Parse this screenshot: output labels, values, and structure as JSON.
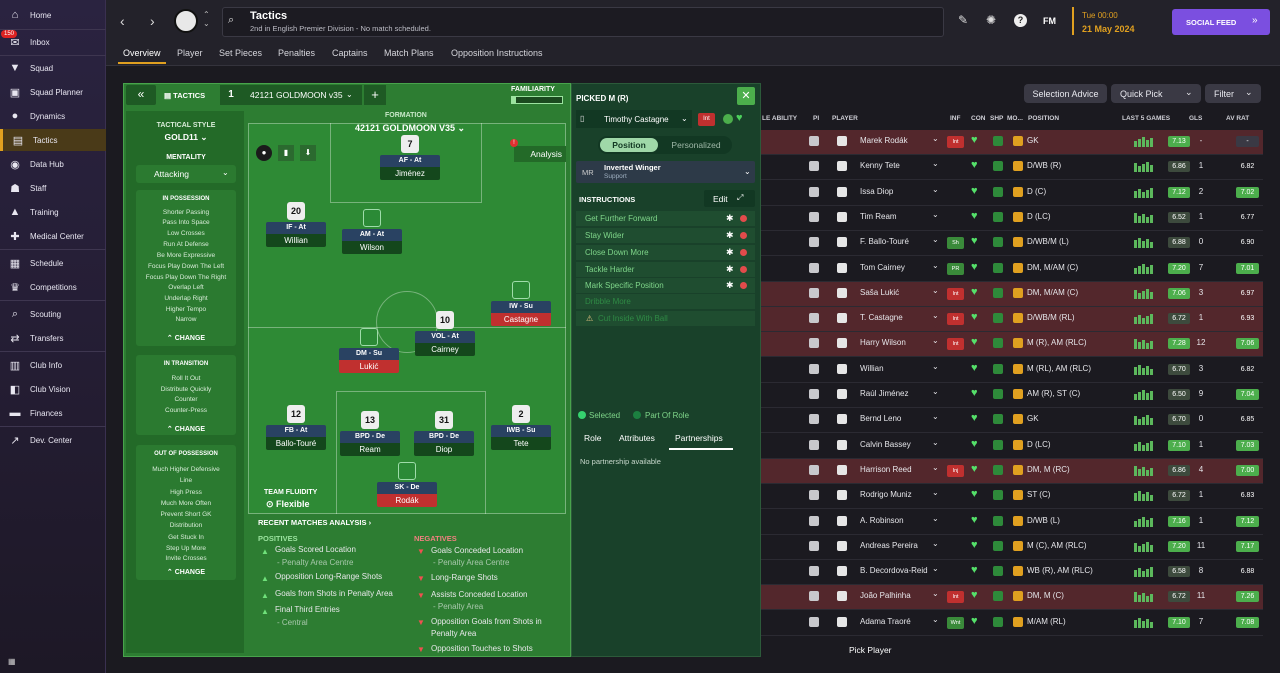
{
  "sidebar": {
    "items": [
      {
        "label": "Home",
        "icon": "home-icon"
      },
      {
        "label": "Inbox",
        "icon": "inbox-icon",
        "badge": "150"
      },
      {
        "label": "Squad",
        "icon": "shirt-icon"
      },
      {
        "label": "Squad Planner",
        "icon": "squad-planner-icon"
      },
      {
        "label": "Dynamics",
        "icon": "dynamics-icon"
      },
      {
        "label": "Tactics",
        "icon": "tactics-icon"
      },
      {
        "label": "Data Hub",
        "icon": "data-hub-icon"
      },
      {
        "label": "Staff",
        "icon": "staff-icon"
      },
      {
        "label": "Training",
        "icon": "training-icon"
      },
      {
        "label": "Medical Center",
        "icon": "medical-icon"
      },
      {
        "label": "Schedule",
        "icon": "calendar-icon"
      },
      {
        "label": "Competitions",
        "icon": "trophy-icon"
      },
      {
        "label": "Scouting",
        "icon": "scouting-icon"
      },
      {
        "label": "Transfers",
        "icon": "transfers-icon"
      },
      {
        "label": "Club Info",
        "icon": "club-info-icon"
      },
      {
        "label": "Club Vision",
        "icon": "club-vision-icon"
      },
      {
        "label": "Finances",
        "icon": "finances-icon"
      },
      {
        "label": "Dev. Center",
        "icon": "dev-center-icon"
      }
    ]
  },
  "topbar": {
    "title": "Tactics",
    "subtitle": "2nd in English Premier Division - No match scheduled.",
    "fm_label": "FM",
    "date_time": "Tue 00:00",
    "date": "21 May 2024",
    "social_feed": "SOCIAL FEED"
  },
  "tabs": [
    "Overview",
    "Player",
    "Set Pieces",
    "Penalties",
    "Captains",
    "Match Plans",
    "Opposition Instructions"
  ],
  "tactics": {
    "header": "TACTICS",
    "slot": "1",
    "formation_select": "42121 GOLDMOON v35",
    "familiarity_label": "FAMILIARITY",
    "formation_label": "FORMATION",
    "formation_name": "42121 GOLDMOON V35",
    "analysis": "Analysis",
    "tactical_style_label": "TACTICAL STYLE",
    "tactical_style": "GOLD11",
    "mentality_label": "MENTALITY",
    "mentality": "Attacking",
    "in_possession_label": "IN POSSESSION",
    "in_possession": [
      "Shorter Passing",
      "Pass Into Space",
      "Low Crosses",
      "Run At Defense",
      "Be More Expressive",
      "Focus Play Down The Left",
      "Focus Play Down The Right",
      "Overlap Left",
      "Underlap Right",
      "Higher Tempo",
      "Narrow"
    ],
    "in_transition_label": "IN TRANSITION",
    "in_transition": [
      "Roll It Out",
      "Distribute Quickly",
      "Counter",
      "Counter-Press"
    ],
    "out_of_possession_label": "OUT OF POSSESSION",
    "out_of_possession": [
      "Much Higher Defensive Line",
      "High Press",
      "Much More Often",
      "Prevent Short GK Distribution",
      "Get Stuck In",
      "Step Up More",
      "Invite Crosses"
    ],
    "change": "CHANGE",
    "team_fluidity_label": "TEAM FLUIDITY",
    "team_fluidity": "Flexible",
    "recent_matches": "RECENT MATCHES ANALYSIS",
    "positives_label": "POSITIVES",
    "positives": [
      {
        "text": "Goals Scored Location",
        "sub": "- Penalty Area Centre"
      },
      {
        "text": "Opposition Long-Range Shots",
        "sub": ""
      },
      {
        "text": "Goals from Shots in Penalty Area",
        "sub": ""
      },
      {
        "text": "Final Third Entries",
        "sub": "- Central"
      }
    ],
    "negatives_label": "NEGATIVES",
    "negatives": [
      {
        "text": "Goals Conceded Location",
        "sub": "- Penalty Area Centre"
      },
      {
        "text": "Long-Range Shots",
        "sub": ""
      },
      {
        "text": "Assists Conceded Location",
        "sub": "- Penalty Area"
      },
      {
        "text": "Opposition Goals from Shots in Penalty Area",
        "sub": ""
      },
      {
        "text": "Opposition Touches to Shots",
        "sub": ""
      }
    ]
  },
  "pitch_players": [
    {
      "num": "7",
      "role": "AF - At",
      "name": "Jiménez",
      "red": false
    },
    {
      "num": "20",
      "role": "IF - At",
      "name": "Willian",
      "red": false
    },
    {
      "num": "",
      "role": "AM - At",
      "name": "Wilson",
      "red": false
    },
    {
      "num": "",
      "role": "IW - Su",
      "name": "Castagne",
      "red": true
    },
    {
      "num": "10",
      "role": "VOL - At",
      "name": "Cairney",
      "red": false
    },
    {
      "num": "",
      "role": "DM - Su",
      "name": "Lukić",
      "red": true
    },
    {
      "num": "12",
      "role": "FB - At",
      "name": "Ballo-Touré",
      "red": false
    },
    {
      "num": "13",
      "role": "BPD - De",
      "name": "Ream",
      "red": false
    },
    {
      "num": "31",
      "role": "BPD - De",
      "name": "Diop",
      "red": false
    },
    {
      "num": "2",
      "role": "IWB - Su",
      "name": "Tete",
      "red": false
    },
    {
      "num": "",
      "role": "SK - De",
      "name": "Rodák",
      "red": true
    }
  ],
  "picked": {
    "header": "PICKED M (R)",
    "player": "Timothy Castagne",
    "int_tag": "Int",
    "toggle_position": "Position",
    "toggle_personalized": "Personalized",
    "role_pos": "MR",
    "role_name": "Inverted Winger",
    "role_duty": "Support",
    "instructions_label": "INSTRUCTIONS",
    "edit": "Edit",
    "instructions": [
      "Get Further Forward",
      "Stay Wider",
      "Close Down More",
      "Tackle Harder",
      "Mark Specific Position",
      "Dribble More",
      "Cut Inside With Ball"
    ],
    "legend_selected": "Selected",
    "legend_part": "Part Of Role",
    "subtabs": [
      "Role",
      "Attributes",
      "Partnerships"
    ],
    "no_partnership": "No partnership available"
  },
  "squad": {
    "buttons": {
      "selection_advice": "Selection Advice",
      "quick_pick": "Quick Pick",
      "filter": "Filter"
    },
    "headers": {
      "ability": "LE ABILITY",
      "pi": "PI",
      "player": "PLAYER",
      "inf": "INF",
      "con": "CON",
      "shp": "SHP",
      "mo": "MO...",
      "position": "POSITION",
      "last5": "LAST 5 GAMES",
      "gls": "GLS",
      "avrat": "AV RAT"
    },
    "rows": [
      {
        "name": "Marek Rodák",
        "tag": "Int",
        "position": "GK",
        "rating": "7.13",
        "gls": "-",
        "avrat": "-",
        "red": true
      },
      {
        "name": "Kenny Tete",
        "tag": "",
        "position": "D/WB (R)",
        "rating": "6.86",
        "gls": "1",
        "avrat": "6.82",
        "red": false
      },
      {
        "name": "Issa Diop",
        "tag": "",
        "position": "D (C)",
        "rating": "7.12",
        "gls": "2",
        "avrat": "7.02",
        "red": false
      },
      {
        "name": "Tim Ream",
        "tag": "",
        "position": "D (LC)",
        "rating": "6.52",
        "gls": "1",
        "avrat": "6.77",
        "red": false
      },
      {
        "name": "F. Ballo-Touré",
        "tag": "Sh",
        "position": "D/WB/M (L)",
        "rating": "6.88",
        "gls": "0",
        "avrat": "6.90",
        "red": false
      },
      {
        "name": "Tom Cairney",
        "tag": "PR",
        "position": "DM, M/AM (C)",
        "rating": "7.20",
        "gls": "7",
        "avrat": "7.01",
        "red": false
      },
      {
        "name": "Saša Lukić",
        "tag": "Int",
        "position": "DM, M/AM (C)",
        "rating": "7.06",
        "gls": "3",
        "avrat": "6.97",
        "red": true
      },
      {
        "name": "T. Castagne",
        "tag": "Int",
        "position": "D/WB/M (RL)",
        "rating": "6.72",
        "gls": "1",
        "avrat": "6.93",
        "red": true
      },
      {
        "name": "Harry Wilson",
        "tag": "Int",
        "position": "M (R), AM (RLC)",
        "rating": "7.28",
        "gls": "12",
        "avrat": "7.06",
        "red": true
      },
      {
        "name": "Willian",
        "tag": "",
        "position": "M (RL), AM (RLC)",
        "rating": "6.70",
        "gls": "3",
        "avrat": "6.82",
        "red": false
      },
      {
        "name": "Raúl Jiménez",
        "tag": "",
        "position": "AM (R), ST (C)",
        "rating": "6.50",
        "gls": "9",
        "avrat": "7.04",
        "red": false
      },
      {
        "name": "Bernd Leno",
        "tag": "",
        "position": "GK",
        "rating": "6.70",
        "gls": "0",
        "avrat": "6.85",
        "red": false
      },
      {
        "name": "Calvin Bassey",
        "tag": "",
        "position": "D (LC)",
        "rating": "7.10",
        "gls": "1",
        "avrat": "7.03",
        "red": false
      },
      {
        "name": "Harrison Reed",
        "tag": "Inj",
        "position": "DM, M (RC)",
        "rating": "6.86",
        "gls": "4",
        "avrat": "7.00",
        "red": true
      },
      {
        "name": "Rodrigo Muniz",
        "tag": "",
        "position": "ST (C)",
        "rating": "6.72",
        "gls": "1",
        "avrat": "6.83",
        "red": false
      },
      {
        "name": "A. Robinson",
        "tag": "",
        "position": "D/WB (L)",
        "rating": "7.16",
        "gls": "1",
        "avrat": "7.12",
        "red": false
      },
      {
        "name": "Andreas Pereira",
        "tag": "",
        "position": "M (C), AM (RLC)",
        "rating": "7.20",
        "gls": "11",
        "avrat": "7.17",
        "red": false
      },
      {
        "name": "B. Decordova-Reid",
        "tag": "",
        "position": "WB (R), AM (RLC)",
        "rating": "6.58",
        "gls": "8",
        "avrat": "6.88",
        "red": false
      },
      {
        "name": "João Palhinha",
        "tag": "Int",
        "position": "DM, M (C)",
        "rating": "6.72",
        "gls": "11",
        "avrat": "7.26",
        "red": true
      },
      {
        "name": "Adama Traoré",
        "tag": "Wnt",
        "position": "M/AM (RL)",
        "rating": "7.10",
        "gls": "7",
        "avrat": "7.08",
        "red": false
      }
    ],
    "pick_player": "Pick Player"
  },
  "colors": {
    "accent": "#e0a020",
    "pitch": "#2e8a35",
    "panel": "#2d7d32",
    "social": "#7b4fe0",
    "good": "#4cae4c"
  }
}
